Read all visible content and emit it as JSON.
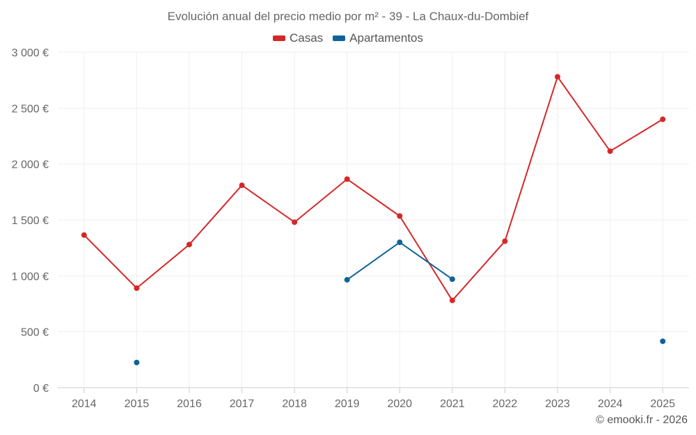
{
  "chart_data": {
    "type": "line",
    "title": "Evolución anual del precio medio por m² - 39 - La Chaux-du-Dombief",
    "categories": [
      "2014",
      "2015",
      "2016",
      "2017",
      "2018",
      "2019",
      "2020",
      "2021",
      "2022",
      "2023",
      "2024",
      "2025"
    ],
    "y_ticks": [
      "0 €",
      "500 €",
      "1 000 €",
      "1 500 €",
      "2 000 €",
      "2 500 €",
      "3 000 €"
    ],
    "ylim": [
      0,
      3000
    ],
    "grid": true,
    "legend_position": "top-center",
    "series": [
      {
        "name": "Casas",
        "color": "#d62728",
        "values": [
          1365,
          890,
          1280,
          1810,
          1480,
          1865,
          1535,
          780,
          1310,
          2780,
          2115,
          2400
        ]
      },
      {
        "name": "Apartamentos",
        "color": "#0e6399",
        "values": [
          null,
          225,
          null,
          null,
          null,
          965,
          1300,
          970,
          null,
          null,
          null,
          415
        ]
      }
    ]
  },
  "credit": "© emooki.fr - 2026"
}
